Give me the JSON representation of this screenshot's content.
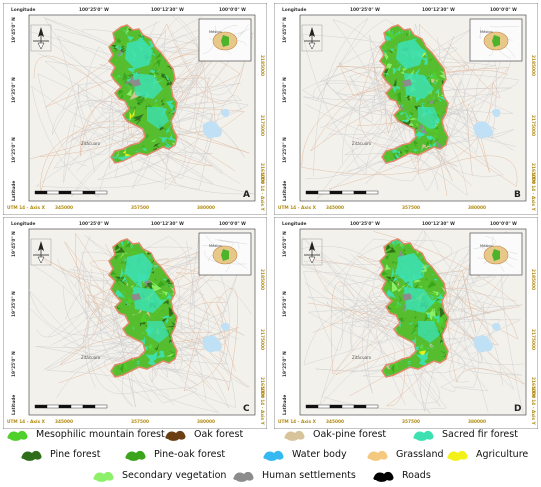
{
  "panels": [
    {
      "letter": "A",
      "mock": "A"
    },
    {
      "letter": "B",
      "mock": "B"
    },
    {
      "letter": "C",
      "mock": "C"
    },
    {
      "letter": "D",
      "mock": "D"
    }
  ],
  "top_coords": [
    "100°25'0\" W",
    "100°12'30\" W",
    "100°0'0\" W"
  ],
  "bottom_coords": [
    "345000",
    "357500",
    "380000"
  ],
  "left_coords": [
    "19°45'0\" N",
    "19°35'0\" N",
    "19°25'0\" N"
  ],
  "right_coords": [
    "2185000",
    "2175000",
    "2165000"
  ],
  "corner_top_label": "Longitude",
  "corner_left_label": "Latitude",
  "utm_label": "UTM 14 - Axis X",
  "utm_label_vertical": "UTM 14 - Axis Y",
  "town_label": "Zitácuaro",
  "inset_label": "México",
  "legend": [
    {
      "label": "Mesophilic mountain forest",
      "color": "#4fd02a"
    },
    {
      "label": "Oak forest",
      "color": "#6b3f12"
    },
    {
      "label": "Oak-pine forest",
      "color": "#d8c49a"
    },
    {
      "label": "Sacred fir forest",
      "color": "#3de0b0"
    },
    {
      "label": "Pine forest",
      "color": "#2e6e1a"
    },
    {
      "label": "Pine-oak forest",
      "color": "#3aa51c"
    },
    {
      "label": "Water body",
      "color": "#36b8f0"
    },
    {
      "label": "Grassland",
      "color": "#f5c880"
    },
    {
      "label": "Agriculture",
      "color": "#f2f21a"
    },
    {
      "label": "Secondary vegetation",
      "color": "#8ef06a"
    },
    {
      "label": "Human settlements",
      "color": "#8c8c8c"
    },
    {
      "label": "Roads",
      "color": "#000000"
    }
  ]
}
